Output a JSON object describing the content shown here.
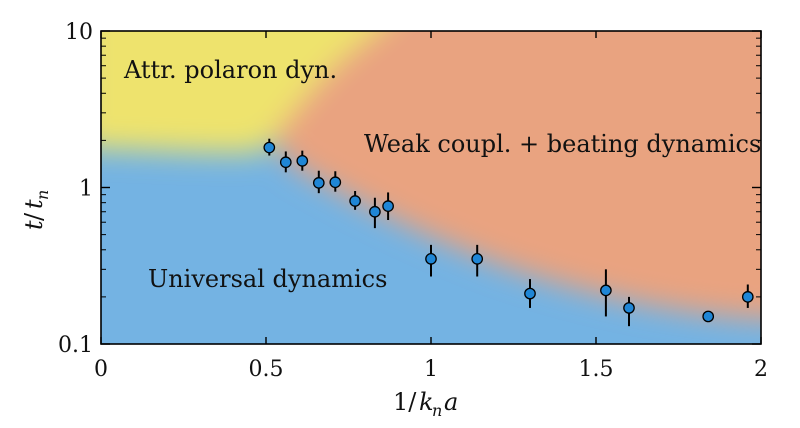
{
  "chart_data": {
    "type": "scatter",
    "xlabel": "1/k_n a",
    "ylabel": "t/t_n",
    "xlim": [
      0,
      2
    ],
    "ylim": [
      0.1,
      10
    ],
    "y_scale": "log",
    "x_ticks": [
      "0",
      "0.5",
      "1",
      "1.5",
      "2"
    ],
    "y_ticks": [
      "0.1",
      "1",
      "10"
    ],
    "regions": [
      {
        "label": "Attr. polaron dyn.",
        "color": "#eee36d"
      },
      {
        "label": "Weak coupl. + beating dynamics",
        "color": "#e9a380"
      },
      {
        "label": "Universal dynamics",
        "color": "#74b3e3"
      }
    ],
    "marker_color": "#1f86d6",
    "points": [
      {
        "x": 0.51,
        "y": 1.8,
        "ylo": 1.6,
        "yhi": 2.05
      },
      {
        "x": 0.56,
        "y": 1.45,
        "ylo": 1.25,
        "yhi": 1.7
      },
      {
        "x": 0.61,
        "y": 1.48,
        "ylo": 1.28,
        "yhi": 1.72
      },
      {
        "x": 0.66,
        "y": 1.07,
        "ylo": 0.92,
        "yhi": 1.28
      },
      {
        "x": 0.71,
        "y": 1.08,
        "ylo": 0.94,
        "yhi": 1.27
      },
      {
        "x": 0.77,
        "y": 0.82,
        "ylo": 0.72,
        "yhi": 0.95
      },
      {
        "x": 0.83,
        "y": 0.7,
        "ylo": 0.55,
        "yhi": 0.86
      },
      {
        "x": 0.87,
        "y": 0.76,
        "ylo": 0.62,
        "yhi": 0.93
      },
      {
        "x": 1.0,
        "y": 0.35,
        "ylo": 0.27,
        "yhi": 0.43
      },
      {
        "x": 1.14,
        "y": 0.35,
        "ylo": 0.27,
        "yhi": 0.43
      },
      {
        "x": 1.3,
        "y": 0.21,
        "ylo": 0.17,
        "yhi": 0.26
      },
      {
        "x": 1.53,
        "y": 0.22,
        "ylo": 0.15,
        "yhi": 0.3
      },
      {
        "x": 1.6,
        "y": 0.17,
        "ylo": 0.13,
        "yhi": 0.2
      },
      {
        "x": 1.84,
        "y": 0.15,
        "ylo": 0.14,
        "yhi": 0.16
      },
      {
        "x": 1.96,
        "y": 0.2,
        "ylo": 0.17,
        "yhi": 0.24
      }
    ]
  }
}
